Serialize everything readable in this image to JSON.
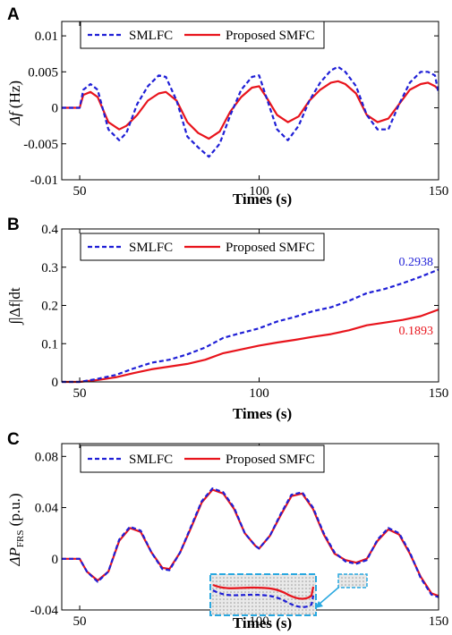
{
  "colors": {
    "smlfc": "#1f1fd6",
    "proposed": "#e8141c",
    "inset": "#29a8e0"
  },
  "chart_data": [
    {
      "panel": "A",
      "type": "line",
      "xlabel": "Times (s)",
      "ylabel_main": "Δf",
      "ylabel_unit": " (Hz)",
      "xlim": [
        45,
        150
      ],
      "ylim": [
        -0.01,
        0.012
      ],
      "xticks": [
        "50",
        "100",
        "150"
      ],
      "yticks": [
        "-0.01",
        "-0.005",
        "0",
        "0.005",
        "0.01"
      ],
      "yticks_values": [
        -0.01,
        -0.005,
        0,
        0.005,
        0.01
      ],
      "legend": {
        "position": "top-left",
        "entries": [
          "SMLFC",
          "Proposed SMFC"
        ]
      },
      "series": [
        {
          "name": "SMLFC",
          "style": "dashed",
          "x": [
            45,
            50,
            51,
            53,
            55,
            58,
            61,
            63,
            66,
            69,
            72,
            74,
            77,
            80,
            83,
            86,
            89,
            92,
            95,
            98,
            100,
            102,
            105,
            108,
            111,
            114,
            117,
            120,
            122,
            124,
            127,
            130,
            133,
            136,
            139,
            142,
            145,
            147,
            149,
            150
          ],
          "y": [
            0,
            0,
            0.0025,
            0.0033,
            0.0025,
            -0.003,
            -0.0045,
            -0.0035,
            0.0005,
            0.003,
            0.0045,
            0.0043,
            0.001,
            -0.004,
            -0.0055,
            -0.0068,
            -0.005,
            -0.001,
            0.0025,
            0.0043,
            0.0045,
            0.0015,
            -0.003,
            -0.0045,
            -0.0025,
            0.001,
            0.0035,
            0.0052,
            0.0057,
            0.005,
            0.003,
            -0.001,
            -0.003,
            -0.003,
            0.0005,
            0.0035,
            0.005,
            0.005,
            0.0045,
            0.002
          ]
        },
        {
          "name": "Proposed SMFC",
          "style": "solid",
          "x": [
            45,
            50,
            51,
            53,
            55,
            58,
            61,
            63,
            66,
            69,
            72,
            74,
            77,
            80,
            83,
            86,
            89,
            92,
            95,
            98,
            100,
            102,
            105,
            108,
            111,
            114,
            117,
            120,
            122,
            124,
            127,
            130,
            133,
            136,
            139,
            142,
            145,
            147,
            149,
            150
          ],
          "y": [
            0,
            0,
            0.0018,
            0.0022,
            0.0015,
            -0.002,
            -0.003,
            -0.0025,
            -0.001,
            0.001,
            0.002,
            0.0022,
            0.001,
            -0.002,
            -0.0035,
            -0.0043,
            -0.0033,
            -0.0005,
            0.0015,
            0.0028,
            0.003,
            0.0015,
            -0.001,
            -0.002,
            -0.0012,
            0.001,
            0.0025,
            0.0035,
            0.0037,
            0.0033,
            0.002,
            -0.001,
            -0.002,
            -0.0015,
            0.0005,
            0.0025,
            0.0033,
            0.0035,
            0.003,
            0.0025
          ]
        }
      ]
    },
    {
      "panel": "B",
      "type": "line",
      "xlabel": "Times (s)",
      "ylabel_main": "∫|Δf|dt",
      "xlim": [
        45,
        150
      ],
      "ylim": [
        0,
        0.4
      ],
      "xticks": [
        "50",
        "100",
        "150"
      ],
      "yticks": [
        "0",
        "0.1",
        "0.2",
        "0.3",
        "0.4"
      ],
      "yticks_values": [
        0,
        0.1,
        0.2,
        0.3,
        0.4
      ],
      "legend": {
        "position": "top-left",
        "entries": [
          "SMLFC",
          "Proposed SMFC"
        ]
      },
      "annotations": [
        {
          "text": "0.2938",
          "series": "SMLFC"
        },
        {
          "text": "0.1893",
          "series": "Proposed SMFC"
        }
      ],
      "series": [
        {
          "name": "SMLFC",
          "style": "dashed",
          "x": [
            45,
            50,
            55,
            60,
            65,
            70,
            75,
            80,
            85,
            90,
            95,
            100,
            105,
            110,
            115,
            120,
            125,
            130,
            135,
            140,
            145,
            150
          ],
          "y": [
            0,
            0,
            0.008,
            0.018,
            0.035,
            0.05,
            0.058,
            0.072,
            0.09,
            0.115,
            0.128,
            0.14,
            0.158,
            0.17,
            0.185,
            0.195,
            0.212,
            0.232,
            0.243,
            0.258,
            0.275,
            0.2938
          ]
        },
        {
          "name": "Proposed SMFC",
          "style": "solid",
          "x": [
            45,
            50,
            55,
            60,
            65,
            70,
            75,
            80,
            85,
            90,
            95,
            100,
            105,
            110,
            115,
            120,
            125,
            130,
            135,
            140,
            145,
            150
          ],
          "y": [
            0,
            0,
            0.005,
            0.012,
            0.023,
            0.033,
            0.04,
            0.047,
            0.058,
            0.075,
            0.085,
            0.095,
            0.103,
            0.11,
            0.118,
            0.125,
            0.135,
            0.148,
            0.155,
            0.162,
            0.172,
            0.1893
          ]
        }
      ]
    },
    {
      "panel": "C",
      "type": "line",
      "xlabel": "Times (s)",
      "ylabel_main": "ΔP",
      "ylabel_sub": "FRS",
      "ylabel_unit": " (p.u.)",
      "xlim": [
        45,
        150
      ],
      "ylim": [
        -0.04,
        0.09
      ],
      "xticks": [
        "50",
        "100",
        "150"
      ],
      "yticks": [
        "-0.04",
        "0",
        "0.04",
        "0.08"
      ],
      "yticks_values": [
        -0.04,
        0,
        0.04,
        0.08
      ],
      "legend": {
        "position": "top-left",
        "entries": [
          "SMLFC",
          "Proposed SMFC"
        ]
      },
      "series": [
        {
          "name": "SMLFC",
          "style": "dashed",
          "x": [
            45,
            50,
            52,
            55,
            58,
            61,
            64,
            67,
            70,
            73,
            75,
            78,
            81,
            84,
            87,
            90,
            93,
            96,
            99,
            100,
            103,
            106,
            109,
            112,
            115,
            118,
            121,
            124,
            127,
            130,
            133,
            136,
            139,
            142,
            145,
            148,
            150
          ],
          "y": [
            0,
            0,
            -0.01,
            -0.018,
            -0.01,
            0.015,
            0.025,
            0.022,
            0.005,
            -0.008,
            -0.009,
            0.005,
            0.025,
            0.045,
            0.055,
            0.052,
            0.04,
            0.02,
            0.01,
            0.008,
            0.018,
            0.035,
            0.05,
            0.052,
            0.04,
            0.02,
            0.005,
            -0.002,
            -0.004,
            -0.001,
            0.015,
            0.024,
            0.02,
            0.005,
            -0.015,
            -0.028,
            -0.03
          ]
        },
        {
          "name": "Proposed SMFC",
          "style": "solid",
          "x": [
            45,
            50,
            52,
            55,
            58,
            61,
            64,
            67,
            70,
            73,
            75,
            78,
            81,
            84,
            87,
            90,
            93,
            96,
            99,
            100,
            103,
            106,
            109,
            112,
            115,
            118,
            121,
            124,
            127,
            130,
            133,
            136,
            139,
            142,
            145,
            148,
            150
          ],
          "y": [
            0,
            0,
            -0.01,
            -0.017,
            -0.01,
            0.014,
            0.024,
            0.021,
            0.005,
            -0.007,
            -0.008,
            0.005,
            0.024,
            0.044,
            0.054,
            0.051,
            0.039,
            0.02,
            0.01,
            0.008,
            0.018,
            0.034,
            0.049,
            0.051,
            0.039,
            0.019,
            0.004,
            -0.001,
            -0.003,
            0.0,
            0.014,
            0.023,
            0.019,
            0.004,
            -0.014,
            -0.027,
            -0.029
          ]
        }
      ]
    }
  ]
}
